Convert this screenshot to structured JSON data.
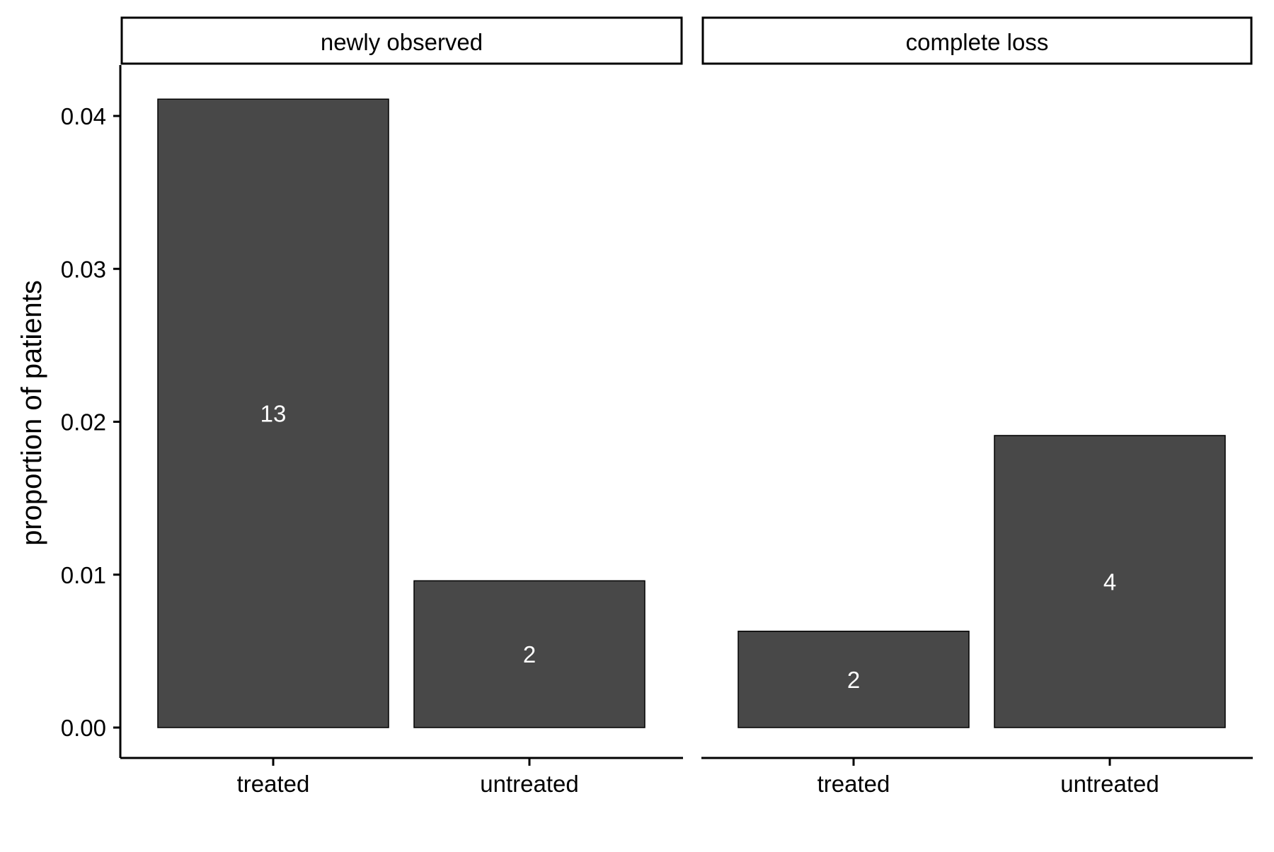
{
  "colors": {
    "bar_fill": "#484848",
    "bar_stroke": "#000000",
    "bar_label": "#ffffff",
    "axis": "#000000",
    "background": "#ffffff"
  },
  "chart_data": {
    "type": "bar",
    "ylabel": "proportion of patients",
    "xlabel": "",
    "ylim": [
      0,
      0.04
    ],
    "y_ticks": [
      0.0,
      0.01,
      0.02,
      0.03,
      0.04
    ],
    "y_tick_labels": [
      "0.00",
      "0.01",
      "0.02",
      "0.03",
      "0.04"
    ],
    "grid": false,
    "categories": [
      "treated",
      "untreated"
    ],
    "facets": [
      {
        "name": "newly observed",
        "values": [
          0.0411,
          0.0096
        ],
        "labels": [
          "13",
          "2"
        ]
      },
      {
        "name": "complete loss",
        "values": [
          0.0063,
          0.0191
        ],
        "labels": [
          "2",
          "4"
        ]
      }
    ]
  }
}
